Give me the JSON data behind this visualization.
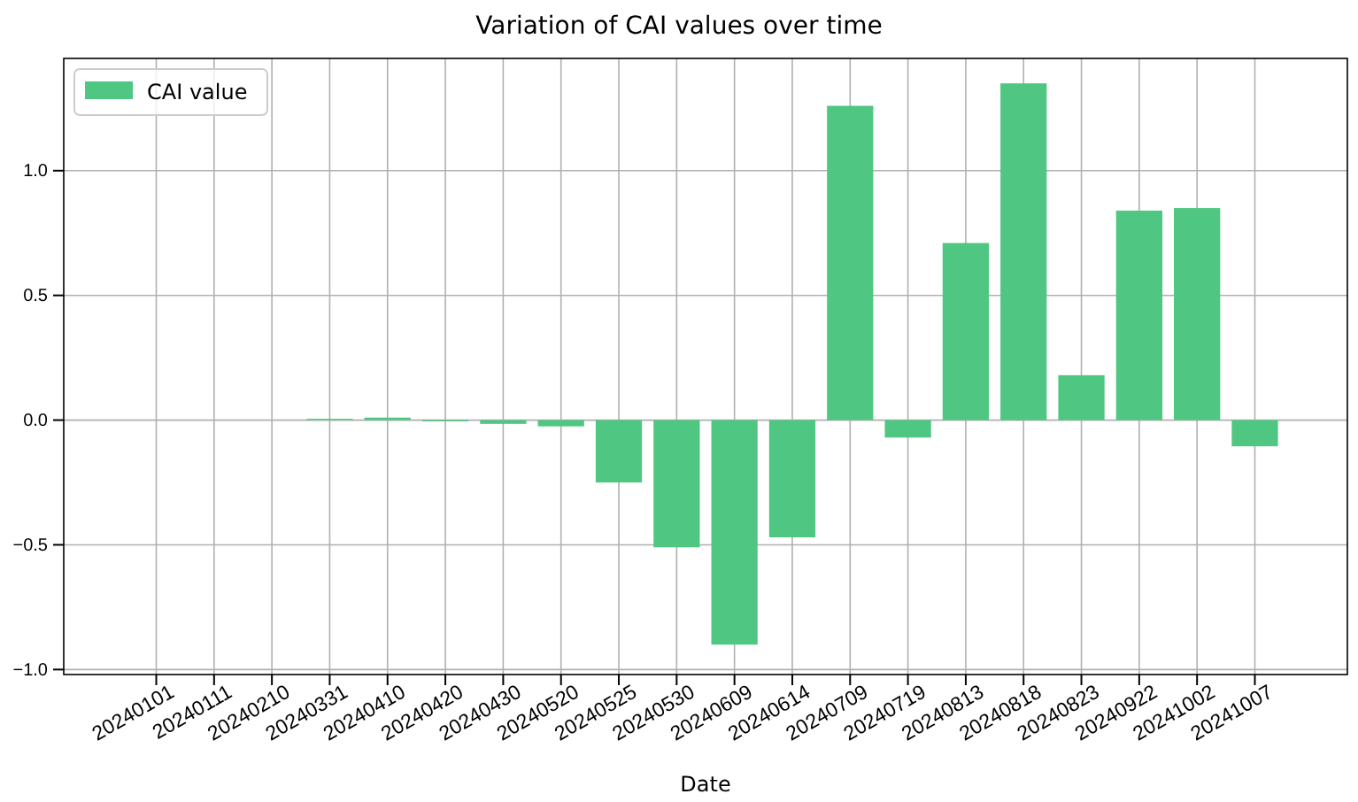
{
  "chart_data": {
    "type": "bar",
    "title": "Variation of CAI values over time",
    "xlabel": "Date",
    "categories": [
      "20240101",
      "20240111",
      "20240210",
      "20240331",
      "20240410",
      "20240420",
      "20240430",
      "20240520",
      "20240525",
      "20240530",
      "20240609",
      "20240614",
      "20240709",
      "20240719",
      "20240813",
      "20240818",
      "20240823",
      "20240922",
      "20241002",
      "20241007"
    ],
    "series": [
      {
        "name": "CAI value",
        "color": "#4fc681",
        "values": [
          0,
          0,
          0,
          0.005,
          0.01,
          -0.005,
          -0.015,
          -0.025,
          -0.25,
          -0.51,
          -0.9,
          -0.47,
          1.26,
          -0.07,
          0.71,
          1.35,
          0.18,
          0.84,
          0.85,
          -0.105
        ]
      }
    ],
    "ylim": [
      -1.02,
      1.45
    ],
    "yticks": [
      {
        "value": -1,
        "label": "−1.0"
      },
      {
        "value": -0.5,
        "label": "−0.5"
      },
      {
        "value": 0,
        "label": "0.0"
      },
      {
        "value": 0.5,
        "label": "0.5"
      },
      {
        "value": 1,
        "label": "1.0"
      }
    ],
    "grid": true,
    "legend": "top left"
  }
}
